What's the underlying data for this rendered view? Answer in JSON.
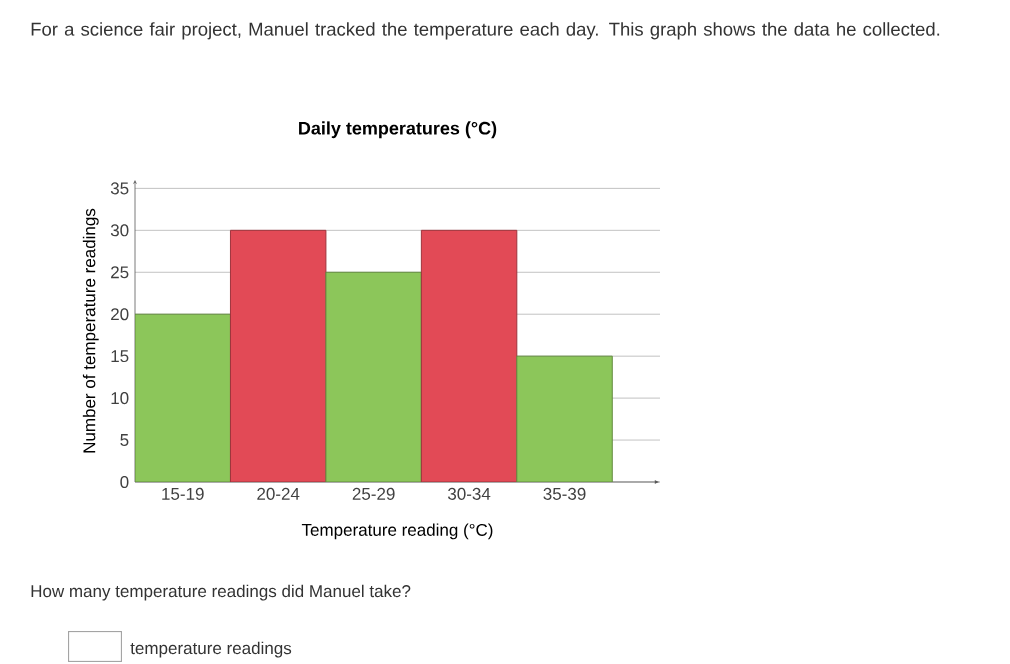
{
  "chart_data": {
    "type": "bar",
    "title": "Daily temperatures (°C)",
    "xlabel": "Temperature reading (°C)",
    "ylabel": "Number of temperature readings",
    "categories": [
      "15-19",
      "20-24",
      "25-29",
      "30-34",
      "35-39"
    ],
    "values": [
      20,
      30,
      25,
      30,
      15
    ],
    "colors": [
      "#8cc65a",
      "#e24a56",
      "#8cc65a",
      "#e24a56",
      "#8cc65a"
    ],
    "ylim": [
      0,
      36
    ],
    "yticks": [
      0,
      5,
      10,
      15,
      20,
      25,
      30,
      35
    ],
    "grid": "y",
    "annotations": [
      "For a science fair project, Manuel tracked the temperature each day. This graph shows the data he collected.",
      "How many temperature readings did Manuel take?",
      "temperature readings"
    ]
  }
}
